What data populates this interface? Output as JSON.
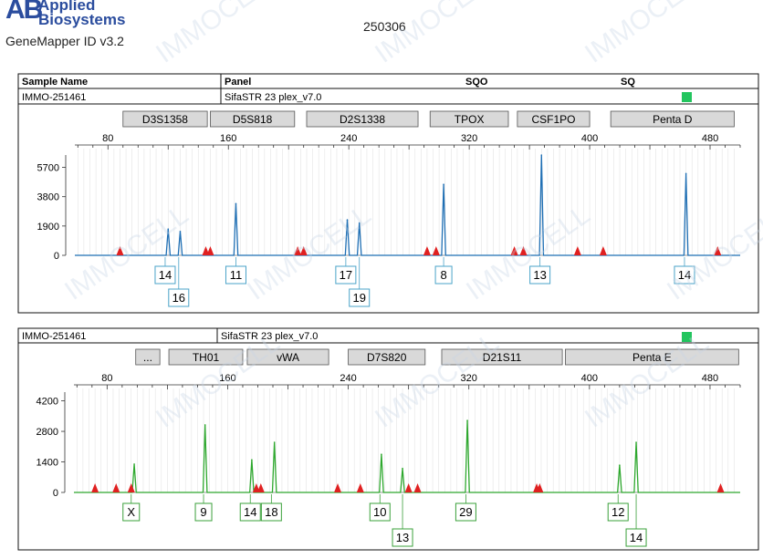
{
  "header": {
    "logo_mark": "AB",
    "brand_line1": "Applied",
    "brand_line2": "Biosystems",
    "software": "GeneMapper ID v3.2",
    "run_id": "250306"
  },
  "table": {
    "col_sample": "Sample Name",
    "col_panel": "Panel",
    "col_sqo": "SQO",
    "col_sq": "SQ"
  },
  "watermark": "IMMOCELL",
  "colors": {
    "blue": "#1f6fb4",
    "green": "#2ea82e",
    "marker": "#e02020",
    "status": "#22c55e",
    "locus_fill": "#d9d9d9",
    "allele_box_blue": "#4aa3c8",
    "allele_box_green": "#3aa03a"
  },
  "chart_data": [
    {
      "type": "line",
      "name": "Blue dye panel",
      "sample_name": "IMMO-251461",
      "panel": "SifaSTR 23 plex_v7.0",
      "status": "green",
      "xlim": [
        58,
        500
      ],
      "ylim": [
        0,
        6500
      ],
      "x_ticks": [
        "80",
        "160",
        "240",
        "320",
        "400",
        "480"
      ],
      "x_tick_values": [
        80,
        160,
        240,
        320,
        400,
        480
      ],
      "y_ticks": [
        "0",
        "1900",
        "3800",
        "5700"
      ],
      "y_tick_values": [
        0,
        1900,
        3800,
        5700
      ],
      "loci": [
        {
          "name": "D3S1358",
          "start": 90,
          "end": 146
        },
        {
          "name": "D5S818",
          "start": 148,
          "end": 204
        },
        {
          "name": "D2S1338",
          "start": 212,
          "end": 286
        },
        {
          "name": "TPOX",
          "start": 294,
          "end": 346
        },
        {
          "name": "CSF1PO",
          "start": 352,
          "end": 400
        },
        {
          "name": "Penta D",
          "start": 414,
          "end": 496
        }
      ],
      "peaks": [
        {
          "x": 120,
          "h": 1700
        },
        {
          "x": 128,
          "h": 1550
        },
        {
          "x": 165,
          "h": 3350
        },
        {
          "x": 239,
          "h": 2300
        },
        {
          "x": 247,
          "h": 2100
        },
        {
          "x": 303,
          "h": 4600
        },
        {
          "x": 368,
          "h": 6500
        },
        {
          "x": 464,
          "h": 5300
        }
      ],
      "allele_labels": [
        {
          "text": "14",
          "x": 118,
          "row": 1
        },
        {
          "text": "16",
          "x": 127,
          "row": 2
        },
        {
          "text": "11",
          "x": 165,
          "row": 1
        },
        {
          "text": "17",
          "x": 238,
          "row": 1
        },
        {
          "text": "19",
          "x": 247,
          "row": 2
        },
        {
          "text": "8",
          "x": 303,
          "row": 1
        },
        {
          "text": "13",
          "x": 367,
          "row": 1
        },
        {
          "text": "14",
          "x": 463,
          "row": 1
        }
      ],
      "markers": [
        88,
        145,
        148,
        206,
        210,
        292,
        298,
        350,
        356,
        392,
        409,
        485
      ]
    },
    {
      "type": "line",
      "name": "Green dye panel",
      "sample_name": "IMMO-251461",
      "panel": "SifaSTR 23 plex_v7.0",
      "status": "green",
      "xlim": [
        58,
        500
      ],
      "ylim": [
        0,
        4600
      ],
      "x_ticks": [
        "80",
        "160",
        "240",
        "320",
        "400",
        "480"
      ],
      "x_tick_values": [
        80,
        160,
        240,
        320,
        400,
        480
      ],
      "y_ticks": [
        "0",
        "1400",
        "2800",
        "4200"
      ],
      "y_tick_values": [
        0,
        1400,
        2800,
        4200
      ],
      "loci": [
        {
          "name": "...",
          "start": 99,
          "end": 115
        },
        {
          "name": "TH01",
          "start": 121,
          "end": 170
        },
        {
          "name": "vWA",
          "start": 173,
          "end": 227
        },
        {
          "name": "D7S820",
          "start": 240,
          "end": 291
        },
        {
          "name": "D21S11",
          "start": 302,
          "end": 382
        },
        {
          "name": "Penta E",
          "start": 384,
          "end": 499
        }
      ],
      "peaks": [
        {
          "x": 98,
          "h": 1300
        },
        {
          "x": 145,
          "h": 3100
        },
        {
          "x": 176,
          "h": 1500
        },
        {
          "x": 191,
          "h": 2300
        },
        {
          "x": 262,
          "h": 1750
        },
        {
          "x": 276,
          "h": 1100
        },
        {
          "x": 319,
          "h": 3300
        },
        {
          "x": 420,
          "h": 1250
        },
        {
          "x": 431,
          "h": 2300
        }
      ],
      "allele_labels": [
        {
          "text": "X",
          "x": 96,
          "row": 1
        },
        {
          "text": "9",
          "x": 144,
          "row": 1
        },
        {
          "text": "14",
          "x": 175,
          "row": 1
        },
        {
          "text": "18",
          "x": 189,
          "row": 1
        },
        {
          "text": "10",
          "x": 261,
          "row": 1
        },
        {
          "text": "13",
          "x": 276,
          "row": 2
        },
        {
          "text": "29",
          "x": 318,
          "row": 1
        },
        {
          "text": "12",
          "x": 419,
          "row": 1
        },
        {
          "text": "14",
          "x": 431,
          "row": 2
        }
      ],
      "markers": [
        72,
        86,
        96,
        179,
        182,
        233,
        248,
        280,
        286,
        365,
        367,
        487
      ]
    }
  ]
}
